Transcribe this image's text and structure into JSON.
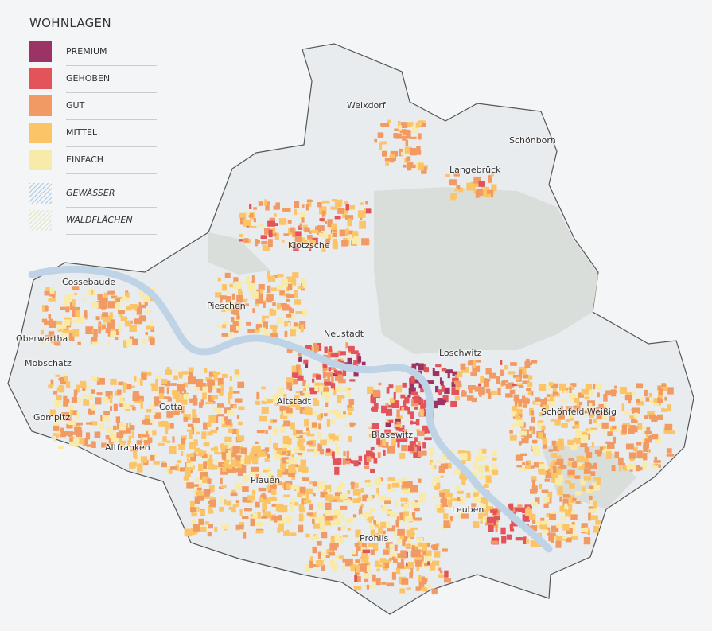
{
  "legend": {
    "title": "WOHNLAGEN",
    "items": [
      {
        "label": "PREMIUM",
        "color": "#9b3464"
      },
      {
        "label": "GEHOBEN",
        "color": "#e2535a"
      },
      {
        "label": "GUT",
        "color": "#f29a63"
      },
      {
        "label": "MITTEL",
        "color": "#fbc466"
      },
      {
        "label": "EINFACH",
        "color": "#f8eaa8"
      }
    ],
    "patterns": [
      {
        "label": "GEWÄSSER",
        "color": "#a9c8e4"
      },
      {
        "label": "WALDFLÄCHEN",
        "color": "#dfe6c6"
      }
    ]
  },
  "map": {
    "colors": {
      "city": "#e9ecef",
      "forest": "#d9dedb",
      "river": "#bfd3e6",
      "outside": "#f4f5f6",
      "boundary": "#555555"
    },
    "districts": [
      "Weixdorf",
      "Schönborn",
      "Langebrück",
      "Klotzsche",
      "Cossebaude",
      "Pieschen",
      "Oberwartha",
      "Neustadt",
      "Loschwitz",
      "Mobschatz",
      "Altstadt",
      "Schönfeld-Weißig",
      "Cotta",
      "Gompitz",
      "Blasewitz",
      "Altfranken",
      "Plauen",
      "Leuben",
      "Prohlis"
    ]
  }
}
